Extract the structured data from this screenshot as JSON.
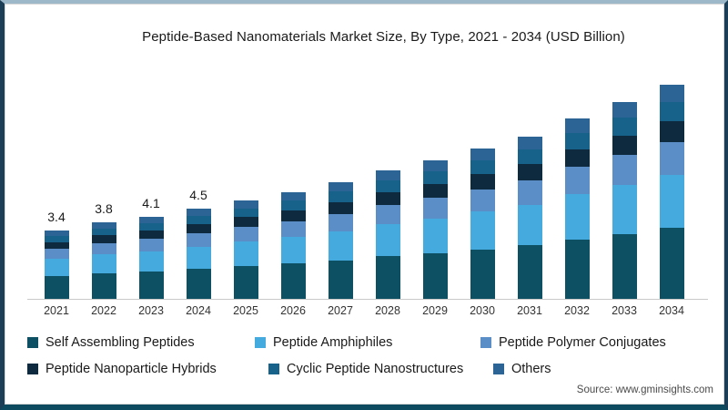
{
  "chart_data": {
    "type": "bar",
    "stacked": true,
    "title": "Peptide-Based Nanomaterials Market Size, By Type, 2021 - 2034 (USD Billion)",
    "categories": [
      "2021",
      "2022",
      "2023",
      "2024",
      "2025",
      "2026",
      "2027",
      "2028",
      "2029",
      "2030",
      "2031",
      "2032",
      "2033",
      "2034"
    ],
    "totals": [
      3.4,
      3.8,
      4.1,
      4.5,
      4.9,
      5.3,
      5.8,
      6.4,
      6.9,
      7.5,
      8.1,
      9.0,
      9.8,
      10.7
    ],
    "value_labels": [
      "3.4",
      "3.8",
      "4.1",
      "4.5",
      "",
      "",
      "",
      "",
      "",
      "",
      "",
      "",
      "",
      ""
    ],
    "series": [
      {
        "name": "Self Assembling Peptides",
        "color": "#0d4f63",
        "fraction": 0.33
      },
      {
        "name": "Peptide Amphiphiles",
        "color": "#45aadd",
        "fraction": 0.25
      },
      {
        "name": "Peptide Polymer Conjugates",
        "color": "#5b8dc7",
        "fraction": 0.15
      },
      {
        "name": "Peptide Nanoparticle Hybrids",
        "color": "#0d2a3e",
        "fraction": 0.1
      },
      {
        "name": "Cyclic Peptide Nanostructures",
        "color": "#17628a",
        "fraction": 0.09
      },
      {
        "name": "Others",
        "color": "#2d6496",
        "fraction": 0.08
      }
    ],
    "ylim": [
      0,
      11
    ],
    "grid": false,
    "legend_position": "bottom"
  },
  "source": {
    "label": "Source: www.gminsights.com"
  }
}
